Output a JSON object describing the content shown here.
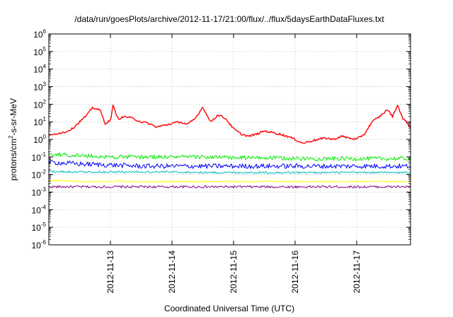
{
  "chart_data": {
    "type": "line",
    "title": "/data/run/goesPlots/archive/2012-11-17/21:00/flux/../flux/5daysEarthDataFluxes.txt",
    "xlabel": "Coordinated Universal Time (UTC)",
    "ylabel": {
      "base": "protons/cm",
      "sup": "2",
      "rest": "-s-sr-MeV"
    },
    "y_scale": "log",
    "ylim_exponent": [
      -6,
      6
    ],
    "y_ticks": [
      {
        "base": "10",
        "exp": "-6"
      },
      {
        "base": "10",
        "exp": "-5"
      },
      {
        "base": "10",
        "exp": "-4"
      },
      {
        "base": "10",
        "exp": "-3"
      },
      {
        "base": "10",
        "exp": "-2"
      },
      {
        "base": "10",
        "exp": "-1"
      },
      {
        "base": "10",
        "exp": "0"
      },
      {
        "base": "10",
        "exp": "1"
      },
      {
        "base": "10",
        "exp": "2"
      },
      {
        "base": "10",
        "exp": "3"
      },
      {
        "base": "10",
        "exp": "4"
      },
      {
        "base": "10",
        "exp": "5"
      },
      {
        "base": "10",
        "exp": "6"
      }
    ],
    "xlim": [
      "2012-11-12T00:00",
      "2012-11-17T21:00"
    ],
    "x_ticks": [
      "2012-11-13",
      "2012-11-14",
      "2012-11-15",
      "2012-11-16",
      "2012-11-17"
    ],
    "grid": true,
    "series": [
      {
        "color": "#ff0000",
        "x": [
          "2012-11-12T00:00",
          "2012-11-12T03:00",
          "2012-11-12T06:00",
          "2012-11-12T09:00",
          "2012-11-12T12:00",
          "2012-11-12T15:00",
          "2012-11-12T17:00",
          "2012-11-12T20:00",
          "2012-11-12T22:00",
          "2012-11-13T00:00",
          "2012-11-13T01:00",
          "2012-11-13T03:00",
          "2012-11-13T06:00",
          "2012-11-13T09:00",
          "2012-11-13T12:00",
          "2012-11-13T15:00",
          "2012-11-13T18:00",
          "2012-11-14T00:00",
          "2012-11-14T03:00",
          "2012-11-14T06:00",
          "2012-11-14T09:00",
          "2012-11-14T12:00",
          "2012-11-14T15:00",
          "2012-11-14T18:00",
          "2012-11-14T21:00",
          "2012-11-15T00:00",
          "2012-11-15T03:00",
          "2012-11-15T06:00",
          "2012-11-15T09:00",
          "2012-11-15T12:00",
          "2012-11-15T15:00",
          "2012-11-15T18:00",
          "2012-11-15T21:00",
          "2012-11-16T00:00",
          "2012-11-16T03:00",
          "2012-11-16T06:00",
          "2012-11-16T09:00",
          "2012-11-16T12:00",
          "2012-11-16T15:00",
          "2012-11-16T18:00",
          "2012-11-16T21:00",
          "2012-11-17T00:00",
          "2012-11-17T03:00",
          "2012-11-17T06:00",
          "2012-11-17T09:00",
          "2012-11-17T12:00",
          "2012-11-17T14:00",
          "2012-11-17T16:00",
          "2012-11-17T18:00",
          "2012-11-17T20:00",
          "2012-11-17T21:00"
        ],
        "y": [
          1.5,
          2.2,
          2.5,
          4,
          10,
          25,
          65,
          45,
          8,
          12,
          80,
          15,
          20,
          15,
          10,
          8,
          5,
          8,
          10,
          7,
          15,
          70,
          10,
          25,
          15,
          4,
          2,
          1.5,
          2,
          3,
          2.5,
          2,
          1.5,
          1,
          0.6,
          0.8,
          1,
          1.2,
          1,
          1.5,
          1.2,
          1,
          2,
          10,
          20,
          50,
          20,
          90,
          15,
          8,
          4
        ]
      },
      {
        "color": "#00ee00",
        "x": [
          "2012-11-12T00:00",
          "2012-11-12T12:00",
          "2012-11-13T00:00",
          "2012-11-13T12:00",
          "2012-11-14T00:00",
          "2012-11-14T12:00",
          "2012-11-15T00:00",
          "2012-11-15T12:00",
          "2012-11-16T00:00",
          "2012-11-16T12:00",
          "2012-11-17T00:00",
          "2012-11-17T12:00",
          "2012-11-17T21:00"
        ],
        "y": [
          0.15,
          0.12,
          0.1,
          0.1,
          0.1,
          0.1,
          0.09,
          0.09,
          0.08,
          0.08,
          0.08,
          0.08,
          0.08
        ]
      },
      {
        "color": "#0000ff",
        "x": [
          "2012-11-12T00:00",
          "2012-11-12T12:00",
          "2012-11-13T00:00",
          "2012-11-13T12:00",
          "2012-11-14T00:00",
          "2012-11-14T12:00",
          "2012-11-15T00:00",
          "2012-11-15T12:00",
          "2012-11-16T00:00",
          "2012-11-16T12:00",
          "2012-11-17T00:00",
          "2012-11-17T12:00",
          "2012-11-17T21:00"
        ],
        "y": [
          0.05,
          0.04,
          0.035,
          0.03,
          0.03,
          0.03,
          0.03,
          0.03,
          0.03,
          0.03,
          0.03,
          0.03,
          0.03
        ]
      },
      {
        "color": "#00bbbb",
        "x": [
          "2012-11-12T00:00",
          "2012-11-12T12:00",
          "2012-11-13T00:00",
          "2012-11-13T12:00",
          "2012-11-14T00:00",
          "2012-11-14T12:00",
          "2012-11-15T00:00",
          "2012-11-15T12:00",
          "2012-11-16T00:00",
          "2012-11-16T12:00",
          "2012-11-17T00:00",
          "2012-11-17T12:00",
          "2012-11-17T21:00"
        ],
        "y": [
          0.015,
          0.014,
          0.014,
          0.014,
          0.014,
          0.013,
          0.013,
          0.013,
          0.013,
          0.013,
          0.013,
          0.013,
          0.013
        ]
      },
      {
        "color": "#ffff00",
        "x": [
          "2012-11-12T00:00",
          "2012-11-12T12:00",
          "2012-11-13T00:00",
          "2012-11-13T12:00",
          "2012-11-14T00:00",
          "2012-11-14T12:00",
          "2012-11-15T00:00",
          "2012-11-15T12:00",
          "2012-11-16T00:00",
          "2012-11-16T12:00",
          "2012-11-17T00:00",
          "2012-11-17T12:00",
          "2012-11-17T21:00"
        ],
        "y": [
          0.0045,
          0.004,
          0.004,
          0.004,
          0.004,
          0.004,
          0.004,
          0.004,
          0.004,
          0.004,
          0.004,
          0.004,
          0.004
        ]
      },
      {
        "color": "#800080",
        "x": [
          "2012-11-12T00:00",
          "2012-11-12T12:00",
          "2012-11-13T00:00",
          "2012-11-13T12:00",
          "2012-11-14T00:00",
          "2012-11-14T12:00",
          "2012-11-15T00:00",
          "2012-11-15T12:00",
          "2012-11-16T00:00",
          "2012-11-16T12:00",
          "2012-11-17T00:00",
          "2012-11-17T12:00",
          "2012-11-17T21:00"
        ],
        "y": [
          0.002,
          0.002,
          0.002,
          0.002,
          0.002,
          0.002,
          0.002,
          0.002,
          0.002,
          0.002,
          0.002,
          0.002,
          0.002
        ]
      }
    ]
  }
}
